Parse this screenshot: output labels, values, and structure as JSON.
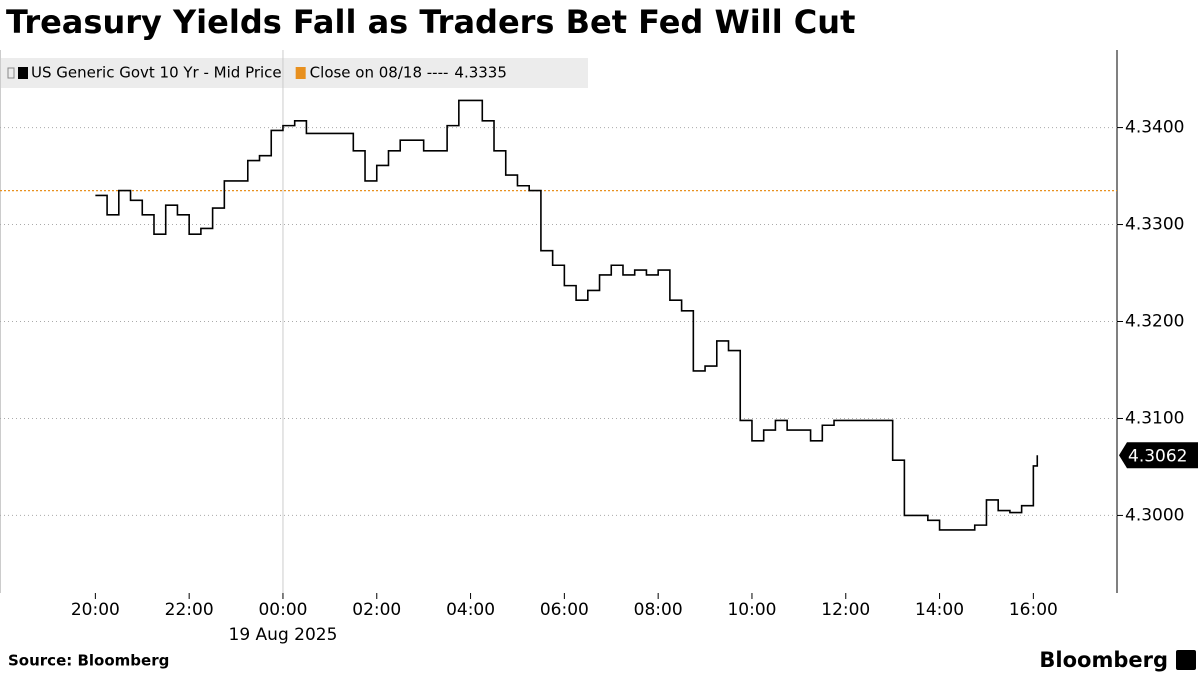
{
  "chart_data": {
    "type": "line",
    "title": "Treasury Yields Fall as Traders Bet Fed Will Cut",
    "source": "Source: Bloomberg",
    "brand": "Bloomberg",
    "date_label": "19 Aug 2025",
    "x": [
      "2025-08-18T20:00",
      "2025-08-18T20:15",
      "2025-08-18T20:30",
      "2025-08-18T20:45",
      "2025-08-18T21:00",
      "2025-08-18T21:15",
      "2025-08-18T21:30",
      "2025-08-18T21:45",
      "2025-08-18T22:00",
      "2025-08-18T22:15",
      "2025-08-18T22:30",
      "2025-08-18T22:45",
      "2025-08-18T23:00",
      "2025-08-18T23:15",
      "2025-08-18T23:30",
      "2025-08-18T23:45",
      "2025-08-19T00:00",
      "2025-08-19T00:15",
      "2025-08-19T00:30",
      "2025-08-19T00:45",
      "2025-08-19T01:00",
      "2025-08-19T01:15",
      "2025-08-19T01:30",
      "2025-08-19T01:45",
      "2025-08-19T02:00",
      "2025-08-19T02:15",
      "2025-08-19T02:30",
      "2025-08-19T02:45",
      "2025-08-19T03:00",
      "2025-08-19T03:15",
      "2025-08-19T03:30",
      "2025-08-19T03:45",
      "2025-08-19T04:00",
      "2025-08-19T04:15",
      "2025-08-19T04:30",
      "2025-08-19T04:45",
      "2025-08-19T05:00",
      "2025-08-19T05:15",
      "2025-08-19T05:30",
      "2025-08-19T05:45",
      "2025-08-19T06:00",
      "2025-08-19T06:15",
      "2025-08-19T06:30",
      "2025-08-19T06:45",
      "2025-08-19T07:00",
      "2025-08-19T07:15",
      "2025-08-19T07:30",
      "2025-08-19T07:45",
      "2025-08-19T08:00",
      "2025-08-19T08:15",
      "2025-08-19T08:30",
      "2025-08-19T08:45",
      "2025-08-19T09:00",
      "2025-08-19T09:15",
      "2025-08-19T09:30",
      "2025-08-19T09:45",
      "2025-08-19T10:00",
      "2025-08-19T10:15",
      "2025-08-19T10:30",
      "2025-08-19T10:45",
      "2025-08-19T11:00",
      "2025-08-19T11:15",
      "2025-08-19T11:30",
      "2025-08-19T11:45",
      "2025-08-19T12:00",
      "2025-08-19T12:15",
      "2025-08-19T12:30",
      "2025-08-19T12:45",
      "2025-08-19T13:00",
      "2025-08-19T13:15",
      "2025-08-19T13:30",
      "2025-08-19T13:45",
      "2025-08-19T14:00",
      "2025-08-19T14:15",
      "2025-08-19T14:30",
      "2025-08-19T14:45",
      "2025-08-19T15:00",
      "2025-08-19T15:15",
      "2025-08-19T15:30",
      "2025-08-19T15:45",
      "2025-08-19T16:00",
      "2025-08-19T16:05"
    ],
    "series": [
      {
        "name": "US Generic Govt 10 Yr - Mid Price",
        "color": "#000000",
        "values": [
          4.333,
          4.331,
          4.3335,
          4.3325,
          4.331,
          4.329,
          4.332,
          4.331,
          4.329,
          4.3296,
          4.3317,
          4.3345,
          4.3345,
          4.3366,
          4.3371,
          4.3397,
          4.3402,
          4.3407,
          4.3394,
          4.3394,
          4.3394,
          4.3394,
          4.3376,
          4.3345,
          4.3361,
          4.3376,
          4.3387,
          4.3387,
          4.3376,
          4.3376,
          4.3402,
          4.3428,
          4.3428,
          4.3407,
          4.3376,
          4.3351,
          4.334,
          4.3335,
          4.3273,
          4.3258,
          4.3237,
          4.3222,
          4.3232,
          4.3248,
          4.3258,
          4.3248,
          4.3253,
          4.3248,
          4.3253,
          4.3222,
          4.3211,
          4.3149,
          4.3154,
          4.318,
          4.317,
          4.3098,
          4.3077,
          4.3088,
          4.3098,
          4.3088,
          4.3088,
          4.3077,
          4.3093,
          4.3098,
          4.3098,
          4.3098,
          4.3098,
          4.3098,
          4.3057,
          4.3,
          4.3,
          4.2995,
          4.2985,
          4.2985,
          4.2985,
          4.299,
          4.3016,
          4.3005,
          4.3003,
          4.301,
          4.3051,
          4.3062
        ]
      }
    ],
    "reference_line": {
      "name": "Close on 08/18 ----",
      "value": 4.3335,
      "color": "#e8901e"
    },
    "xlim": [
      "2025-08-18T17:58",
      "2025-08-19T17:47"
    ],
    "xticks": [
      {
        "value": "2025-08-18T20:00",
        "label": "20:00"
      },
      {
        "value": "2025-08-18T22:00",
        "label": "22:00"
      },
      {
        "value": "2025-08-19T00:00",
        "label": "00:00"
      },
      {
        "value": "2025-08-19T02:00",
        "label": "02:00"
      },
      {
        "value": "2025-08-19T04:00",
        "label": "04:00"
      },
      {
        "value": "2025-08-19T06:00",
        "label": "06:00"
      },
      {
        "value": "2025-08-19T08:00",
        "label": "08:00"
      },
      {
        "value": "2025-08-19T10:00",
        "label": "10:00"
      },
      {
        "value": "2025-08-19T12:00",
        "label": "12:00"
      },
      {
        "value": "2025-08-19T14:00",
        "label": "14:00"
      },
      {
        "value": "2025-08-19T16:00",
        "label": "16:00"
      }
    ],
    "ylim": [
      4.292,
      4.348
    ],
    "yticks": [
      {
        "value": 4.3,
        "label": "4.3000"
      },
      {
        "value": 4.31,
        "label": "4.3100"
      },
      {
        "value": 4.32,
        "label": "4.3200"
      },
      {
        "value": 4.33,
        "label": "4.3300"
      },
      {
        "value": 4.34,
        "label": "4.3400"
      }
    ],
    "grid": true,
    "step": true,
    "y_axis_side": "right"
  }
}
